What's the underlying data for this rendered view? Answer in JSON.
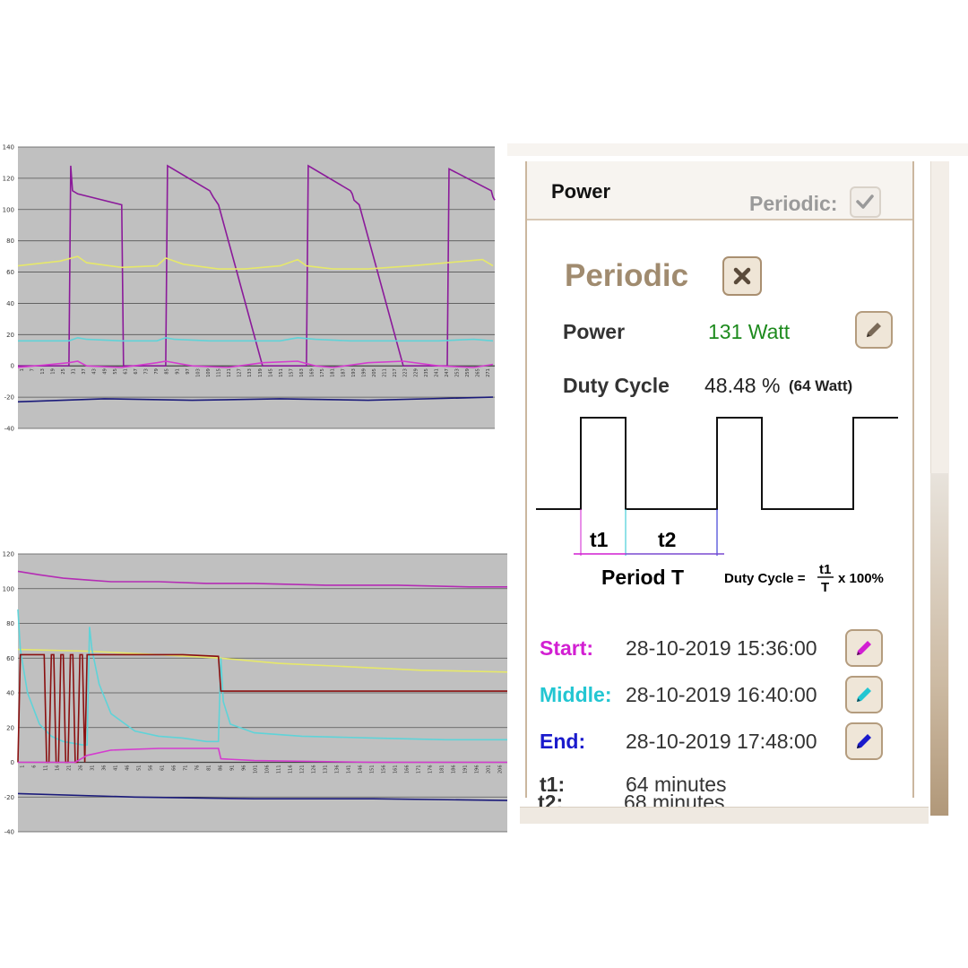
{
  "chart_data": [
    {
      "type": "line",
      "ylim": [
        -40,
        140
      ],
      "yticks": [
        "140",
        "120",
        "100",
        "80",
        "60",
        "40",
        "20",
        "0",
        "-20",
        "-40"
      ],
      "xticks": [
        "1",
        "7",
        "13",
        "19",
        "25",
        "31",
        "37",
        "43",
        "49",
        "55",
        "61",
        "67",
        "73",
        "79",
        "85",
        "91",
        "97",
        "103",
        "109",
        "115",
        "121",
        "127",
        "133",
        "139",
        "145",
        "151",
        "157",
        "163",
        "169",
        "175",
        "181",
        "187",
        "193",
        "199",
        "205",
        "211",
        "217",
        "223",
        "229",
        "235",
        "241",
        "247",
        "253",
        "259",
        "265",
        "271"
      ],
      "grid": true,
      "series": [
        {
          "color": "#8b1a9a",
          "x": [
            1,
            30,
            31,
            32,
            35,
            60,
            61,
            76,
            77,
            78,
            79,
            80,
            81,
            83,
            85,
            86,
            110,
            111,
            112,
            115,
            140,
            141,
            156,
            157,
            158,
            159,
            160,
            161,
            163,
            165,
            166,
            190,
            191,
            192,
            195,
            220,
            221,
            236,
            237,
            238,
            239,
            240,
            241,
            243,
            245,
            246,
            270,
            271,
            272
          ],
          "y": [
            0,
            0,
            128,
            112,
            110,
            103,
            0,
            0,
            0,
            0,
            0,
            0,
            0,
            0,
            0,
            128,
            112,
            110,
            108,
            103,
            0,
            0,
            0,
            0,
            0,
            0,
            0,
            0,
            0,
            0,
            128,
            112,
            110,
            106,
            103,
            0,
            0,
            0,
            0,
            0,
            0,
            0,
            0,
            0,
            0,
            126,
            112,
            108,
            106
          ]
        },
        {
          "color": "#e6e86a",
          "x": [
            1,
            25,
            35,
            40,
            60,
            80,
            85,
            95,
            115,
            130,
            150,
            160,
            165,
            180,
            200,
            225,
            265,
            271
          ],
          "y": [
            64,
            67,
            70,
            66,
            63,
            64,
            69,
            65,
            62,
            62,
            64,
            68,
            64,
            62,
            62,
            64,
            68,
            64
          ]
        },
        {
          "color": "#5fd3d8",
          "x": [
            1,
            30,
            35,
            40,
            60,
            80,
            85,
            90,
            110,
            130,
            150,
            160,
            170,
            190,
            210,
            240,
            260,
            271
          ],
          "y": [
            16,
            16,
            18,
            17,
            16,
            16,
            18,
            17,
            16,
            16,
            16,
            18,
            17,
            16,
            16,
            16,
            17,
            16
          ]
        },
        {
          "color": "#d43ccf",
          "x": [
            1,
            30,
            35,
            40,
            60,
            80,
            85,
            100,
            120,
            140,
            160,
            170,
            180,
            200,
            220,
            240,
            260,
            271
          ],
          "y": [
            -1,
            2,
            3,
            0,
            -1,
            2,
            3,
            0,
            -1,
            2,
            3,
            0,
            -1,
            2,
            3,
            0,
            -1,
            1
          ]
        },
        {
          "color": "#1a1a7a",
          "x": [
            1,
            50,
            100,
            150,
            200,
            271
          ],
          "y": [
            -23,
            -21,
            -22,
            -21,
            -22,
            -20
          ]
        }
      ]
    },
    {
      "type": "line",
      "ylim": [
        -40,
        120
      ],
      "yticks": [
        "120",
        "100",
        "80",
        "60",
        "40",
        "20",
        "0",
        "-20",
        "-40"
      ],
      "xticks": [
        "1",
        "6",
        "11",
        "16",
        "21",
        "26",
        "31",
        "36",
        "41",
        "46",
        "51",
        "56",
        "61",
        "66",
        "71",
        "76",
        "81",
        "86",
        "91",
        "96",
        "101",
        "106",
        "111",
        "116",
        "121",
        "126",
        "131",
        "136",
        "141",
        "146",
        "151",
        "156",
        "161",
        "166",
        "171",
        "176",
        "181",
        "186",
        "191",
        "196",
        "201",
        "206"
      ],
      "grid": true,
      "series": [
        {
          "color": "#b42cb4",
          "x": [
            1,
            10,
            20,
            30,
            40,
            60,
            80,
            100,
            130,
            160,
            190,
            206
          ],
          "y": [
            110,
            108,
            106,
            105,
            104,
            104,
            103,
            103,
            102,
            102,
            101,
            101
          ]
        },
        {
          "color": "#e6e86a",
          "x": [
            1,
            30,
            60,
            86,
            110,
            140,
            170,
            206
          ],
          "y": [
            65,
            64,
            62,
            60,
            57,
            55,
            53,
            52
          ]
        },
        {
          "color": "#5fd3d8",
          "x": [
            1,
            2,
            5,
            10,
            15,
            20,
            28,
            30,
            31,
            32,
            35,
            40,
            50,
            60,
            70,
            80,
            85,
            86,
            87,
            90,
            100,
            120,
            150,
            180,
            206
          ],
          "y": [
            88,
            65,
            40,
            22,
            15,
            12,
            10,
            10,
            78,
            65,
            45,
            28,
            18,
            15,
            14,
            12,
            12,
            60,
            35,
            22,
            17,
            15,
            14,
            13,
            13
          ]
        },
        {
          "color": "#8a1010",
          "x": [
            1,
            2,
            12,
            13,
            14,
            15,
            16,
            17,
            18,
            19,
            20,
            21,
            22,
            23,
            24,
            25,
            26,
            27,
            28,
            29,
            30,
            50,
            70,
            85,
            86,
            100,
            130,
            160,
            206
          ],
          "y": [
            0,
            62,
            62,
            0,
            0,
            62,
            62,
            0,
            0,
            62,
            62,
            0,
            0,
            62,
            62,
            0,
            0,
            62,
            62,
            0,
            62,
            62,
            62,
            61,
            41,
            41,
            41,
            41,
            41
          ]
        },
        {
          "color": "#d43ccf",
          "x": [
            1,
            25,
            30,
            40,
            60,
            85,
            86,
            100,
            150,
            206
          ],
          "y": [
            0,
            0,
            4,
            7,
            8,
            8,
            2,
            1,
            0,
            0
          ]
        },
        {
          "color": "#1a1a7a",
          "x": [
            1,
            50,
            100,
            150,
            206
          ],
          "y": [
            -18,
            -20,
            -21,
            -21,
            -22
          ]
        }
      ]
    }
  ],
  "panel": {
    "header": {
      "title": "Power",
      "periodic_label": "Periodic:",
      "periodic_checked": true
    },
    "section_title": "Periodic",
    "power_label": "Power",
    "power_value": "131 Watt",
    "duty_label": "Duty Cycle",
    "duty_value": "48.48 %",
    "duty_watt": "(64 Watt)",
    "diagram": {
      "t1": "t1",
      "t2": "t2",
      "period": "Period T",
      "formula_prefix": "Duty Cycle =",
      "formula_num": "t1",
      "formula_den": "T",
      "formula_suffix": "x 100%"
    },
    "start_label": "Start:",
    "start_value": "28-10-2019 15:36:00",
    "middle_label": "Middle:",
    "middle_value": "28-10-2019 16:40:00",
    "end_label": "End:",
    "end_value": "28-10-2019 17:48:00",
    "t1_label": "t1:",
    "t1_value": "64 minutes",
    "t2_label": "t2:",
    "t2_value": "68 minutes",
    "colors": {
      "start": "#d21fd2",
      "middle": "#23c6d2",
      "end": "#1a1acc",
      "accent": "#a08b6f",
      "power": "#1d8a1d"
    }
  }
}
